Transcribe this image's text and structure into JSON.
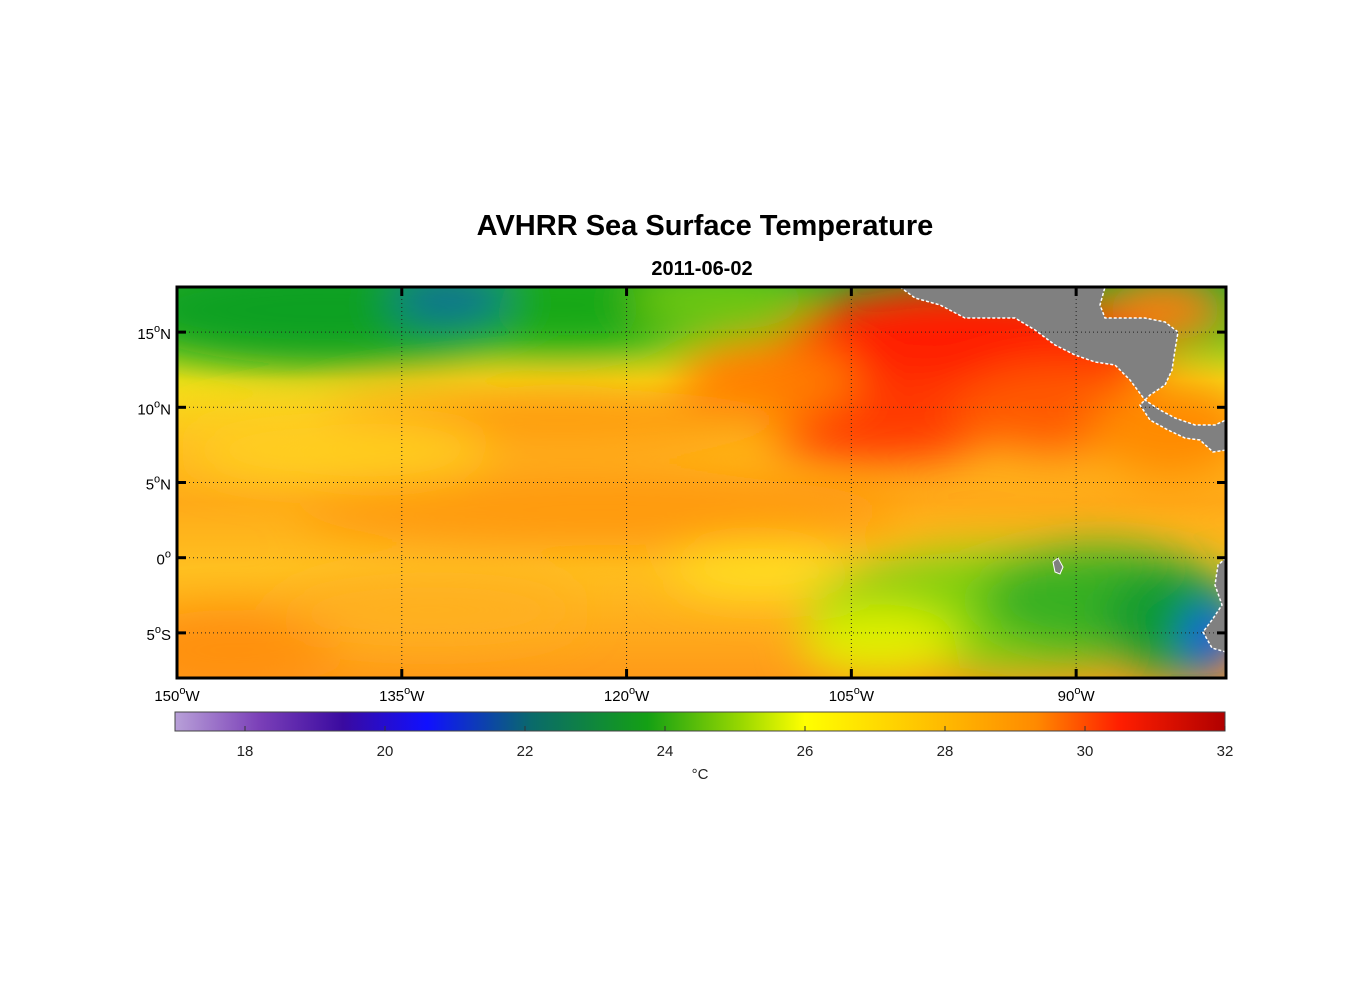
{
  "figure": {
    "title": "AVHRR Sea Surface Temperature",
    "subtitle": "2011-06-02"
  },
  "map": {
    "lon_range": [
      -150,
      -80
    ],
    "lat_range": [
      -8,
      18
    ],
    "grid": "dotted",
    "lon_ticks": [
      {
        "value": -150,
        "deg": "150",
        "hemi": "W"
      },
      {
        "value": -135,
        "deg": "135",
        "hemi": "W"
      },
      {
        "value": -120,
        "deg": "120",
        "hemi": "W"
      },
      {
        "value": -105,
        "deg": "105",
        "hemi": "W"
      },
      {
        "value": -90,
        "deg": "90",
        "hemi": "W"
      }
    ],
    "lat_ticks": [
      {
        "value": 15,
        "deg": "15",
        "hemi": "N"
      },
      {
        "value": 10,
        "deg": "10",
        "hemi": "N"
      },
      {
        "value": 5,
        "deg": "5",
        "hemi": "N"
      },
      {
        "value": 0,
        "deg": "0",
        "hemi": ""
      },
      {
        "value": -5,
        "deg": "5",
        "hemi": "S"
      }
    ],
    "land_color": "#808080",
    "sst_regions": [
      {
        "lon": -145,
        "lat": 16,
        "sst": 24.3
      },
      {
        "lon": -135,
        "lat": 16.5,
        "sst": 23.2
      },
      {
        "lon": -130,
        "lat": 17,
        "sst": 23.4
      },
      {
        "lon": -120,
        "lat": 16,
        "sst": 24.5
      },
      {
        "lon": -110,
        "lat": 15,
        "sst": 27.5
      },
      {
        "lon": -100,
        "lat": 13,
        "sst": 30.2
      },
      {
        "lon": -95,
        "lat": 10,
        "sst": 30.0
      },
      {
        "lon": -85,
        "lat": 8,
        "sst": 28.8
      },
      {
        "lon": -130,
        "lat": 8,
        "sst": 26.5
      },
      {
        "lon": -120,
        "lat": 5,
        "sst": 27.5
      },
      {
        "lon": -140,
        "lat": -3,
        "sst": 27.6
      },
      {
        "lon": -100,
        "lat": -3,
        "sst": 25.4
      },
      {
        "lon": -88,
        "lat": -4,
        "sst": 23.8
      },
      {
        "lon": -81,
        "lat": -6,
        "sst": 21.0
      }
    ]
  },
  "colorbar": {
    "range": [
      17,
      32
    ],
    "ticks": [
      18,
      20,
      22,
      24,
      26,
      28,
      30,
      32
    ],
    "tick_labels": [
      "18",
      "20",
      "22",
      "24",
      "26",
      "28",
      "30",
      "32"
    ],
    "unit_label": "°C",
    "colors": [
      "#b8a0d8",
      "#5a1a9c",
      "#1010ff",
      "#0a6a6a",
      "#14a014",
      "#8ad000",
      "#ffff00",
      "#ffc000",
      "#ff8a00",
      "#ff1e00",
      "#b00000"
    ]
  }
}
